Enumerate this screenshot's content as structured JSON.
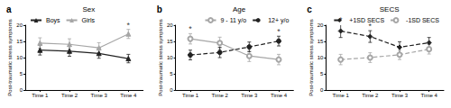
{
  "chart_data": [
    {
      "type": "line",
      "label": "a",
      "title": "Sex",
      "y_label": "Post-traumatic stress symptoms",
      "categories": [
        "Time 1",
        "Time 2",
        "Time 3",
        "Time 4"
      ],
      "series": [
        {
          "name": "Boys",
          "color": "#222222",
          "marker": "triangle",
          "line_style": "solid",
          "values": [
            12.3,
            12.0,
            11.3,
            9.7
          ],
          "errors": [
            1.5,
            1.6,
            1.5,
            1.3
          ]
        },
        {
          "name": "Girls",
          "color": "#a6a6a6",
          "marker": "triangle",
          "line_style": "solid",
          "values": [
            14.5,
            14.1,
            13.0,
            17.3
          ],
          "errors": [
            1.6,
            1.7,
            1.6,
            1.4
          ]
        }
      ],
      "annotations": [
        {
          "x": "Time 4",
          "text": "*"
        }
      ],
      "ylim": [
        0,
        20
      ],
      "yticks": [
        0,
        5,
        10,
        15,
        20
      ],
      "grid": false,
      "legend": "top left"
    },
    {
      "type": "line",
      "label": "b",
      "title": "Age",
      "y_label": "Post-traumatic stress symptoms",
      "categories": [
        "Time 1",
        "Time 2",
        "Time 3",
        "Time 4"
      ],
      "series": [
        {
          "name": "9 - 11 y/o",
          "color": "#a6a6a6",
          "marker": "emptyCircle",
          "line_style": "solid",
          "values": [
            15.8,
            14.5,
            10.5,
            9.4
          ],
          "errors": [
            1.6,
            1.8,
            1.7,
            1.6
          ]
        },
        {
          "name": "12+ y/o",
          "color": "#222222",
          "marker": "circle",
          "line_style": "dashed",
          "values": [
            10.8,
            11.6,
            13.3,
            15.1
          ],
          "errors": [
            1.5,
            1.6,
            1.5,
            1.5
          ]
        }
      ],
      "annotations": [
        {
          "x": "Time 1",
          "text": "*"
        },
        {
          "x": "Time 4",
          "text": "*"
        }
      ],
      "ylim": [
        0,
        20
      ],
      "yticks": [
        0,
        5,
        10,
        15,
        20
      ],
      "grid": false,
      "legend": "top right"
    },
    {
      "type": "line",
      "label": "c",
      "title": "SECS",
      "y_label": "Post-traumatic stress symptoms",
      "categories": [
        "Time 1",
        "Time 2",
        "Time 3",
        "Time 4"
      ],
      "series": [
        {
          "name": "+1SD SECS",
          "color": "#222222",
          "marker": "diamond",
          "line_style": "dashed",
          "values": [
            18.2,
            16.5,
            13.2,
            14.6
          ],
          "errors": [
            2.0,
            1.8,
            1.7,
            1.6
          ]
        },
        {
          "name": "-1SD SECS",
          "color": "#a6a6a6",
          "marker": "emptyCircle",
          "line_style": "dashed",
          "values": [
            9.4,
            10.0,
            10.9,
            12.6
          ],
          "errors": [
            1.6,
            1.5,
            1.5,
            1.5
          ]
        }
      ],
      "annotations": [
        {
          "x": "Time 1",
          "text": "*"
        },
        {
          "x": "Time 2",
          "text": "*"
        }
      ],
      "ylim": [
        0,
        20
      ],
      "yticks": [
        0,
        5,
        10,
        15,
        20
      ],
      "grid": false,
      "legend": "top right"
    }
  ]
}
